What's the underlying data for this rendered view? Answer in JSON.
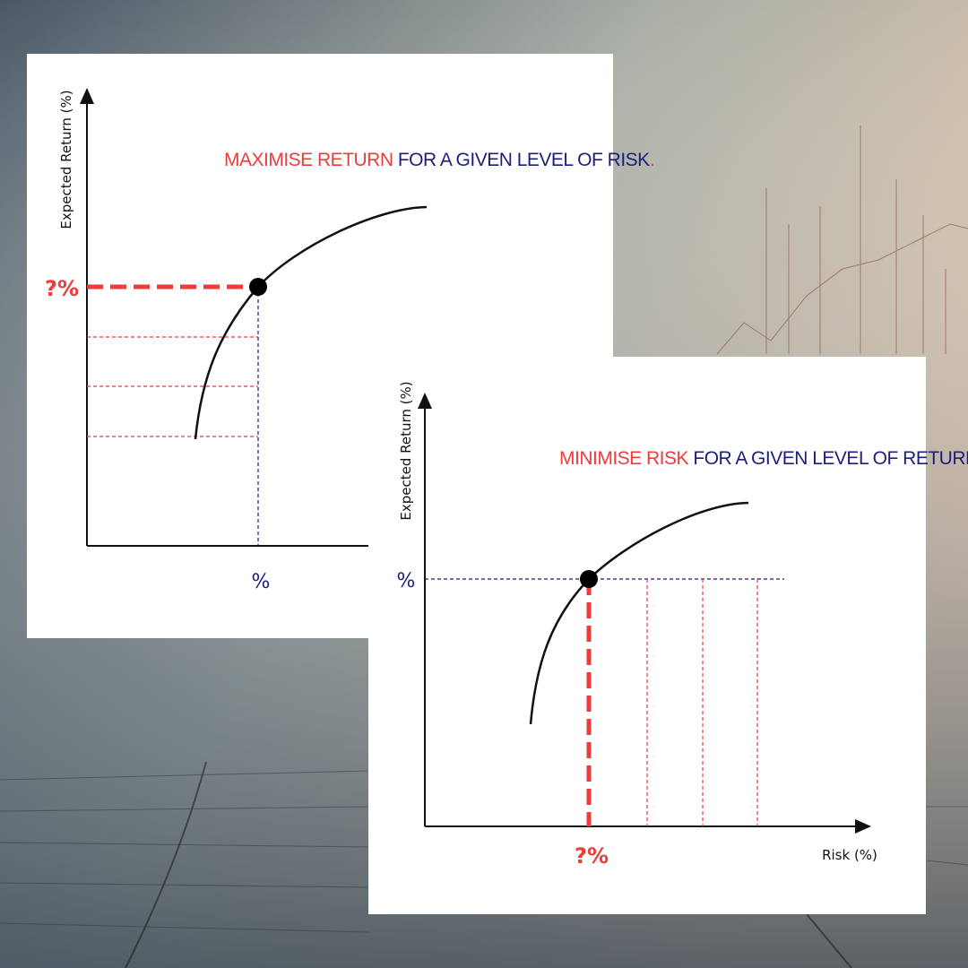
{
  "panels": [
    {
      "title": {
        "highlight": "MAXIMISE RETURN",
        "rest": "FOR A GIVEN LEVEL OF RISK",
        "end": "."
      },
      "y_axis_label": "Expected Return (%)",
      "marker_y_label": "?%",
      "marker_x_label": "%"
    },
    {
      "title": {
        "highlight": "MINIMISE RISK",
        "rest": "FOR A GIVEN LEVEL OF RETURN",
        "end": "."
      },
      "y_axis_label": "Expected Return (%)",
      "x_axis_label": "Risk (%)",
      "marker_y_label": "%",
      "marker_x_label": "?%"
    }
  ]
}
